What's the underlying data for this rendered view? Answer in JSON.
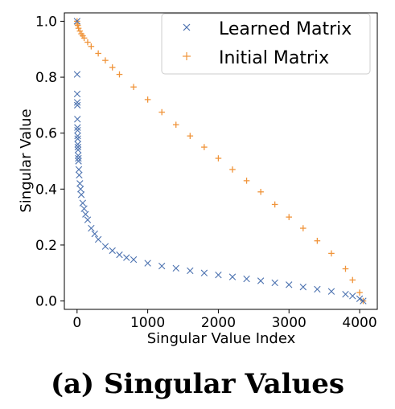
{
  "caption": "(a) Singular Values",
  "chart_data": {
    "type": "scatter",
    "xlabel": "Singular Value Index",
    "ylabel": "Singular Value",
    "xlim": [
      -180,
      4250
    ],
    "ylim": [
      -0.03,
      1.03
    ],
    "x_ticks": [
      0,
      1000,
      2000,
      3000,
      4000
    ],
    "x_tick_labels": [
      "0",
      "1000",
      "2000",
      "3000",
      "4000"
    ],
    "y_ticks": [
      0.0,
      0.2,
      0.4,
      0.6,
      0.8,
      1.0
    ],
    "y_tick_labels": [
      "0.0",
      "0.2",
      "0.4",
      "0.6",
      "0.8",
      "1.0"
    ],
    "grid": false,
    "legend_position": "top-right",
    "series": [
      {
        "name": "Learned Matrix",
        "marker": "x",
        "color": "#4c72b0",
        "x": [
          0,
          1,
          2,
          3,
          4,
          5,
          6,
          7,
          8,
          9,
          10,
          12,
          14,
          16,
          18,
          20,
          25,
          30,
          40,
          50,
          60,
          80,
          100,
          120,
          150,
          200,
          250,
          300,
          400,
          500,
          600,
          700,
          800,
          1000,
          1200,
          1400,
          1600,
          1800,
          2000,
          2200,
          2400,
          2600,
          2800,
          3000,
          3200,
          3400,
          3600,
          3800,
          3900,
          4000,
          4050
        ],
        "y": [
          1.0,
          0.81,
          0.74,
          0.71,
          0.7,
          0.65,
          0.62,
          0.61,
          0.59,
          0.58,
          0.56,
          0.55,
          0.54,
          0.52,
          0.51,
          0.5,
          0.47,
          0.45,
          0.42,
          0.4,
          0.38,
          0.35,
          0.33,
          0.31,
          0.29,
          0.26,
          0.24,
          0.22,
          0.195,
          0.18,
          0.165,
          0.155,
          0.148,
          0.135,
          0.125,
          0.117,
          0.108,
          0.1,
          0.093,
          0.086,
          0.079,
          0.072,
          0.065,
          0.058,
          0.05,
          0.042,
          0.034,
          0.024,
          0.018,
          0.008,
          0.0
        ]
      },
      {
        "name": "Initial Matrix",
        "marker": "+",
        "color": "#f0943a",
        "x": [
          0,
          5,
          10,
          20,
          40,
          60,
          80,
          100,
          150,
          200,
          300,
          400,
          500,
          600,
          800,
          1000,
          1200,
          1400,
          1600,
          1800,
          2000,
          2200,
          2400,
          2600,
          2800,
          3000,
          3200,
          3400,
          3600,
          3800,
          3900,
          4000,
          4050
        ],
        "y": [
          1.0,
          0.99,
          0.985,
          0.975,
          0.965,
          0.955,
          0.948,
          0.94,
          0.925,
          0.91,
          0.885,
          0.86,
          0.835,
          0.81,
          0.765,
          0.72,
          0.675,
          0.63,
          0.59,
          0.55,
          0.51,
          0.47,
          0.43,
          0.39,
          0.345,
          0.3,
          0.26,
          0.215,
          0.17,
          0.115,
          0.075,
          0.03,
          0.0
        ]
      }
    ]
  }
}
